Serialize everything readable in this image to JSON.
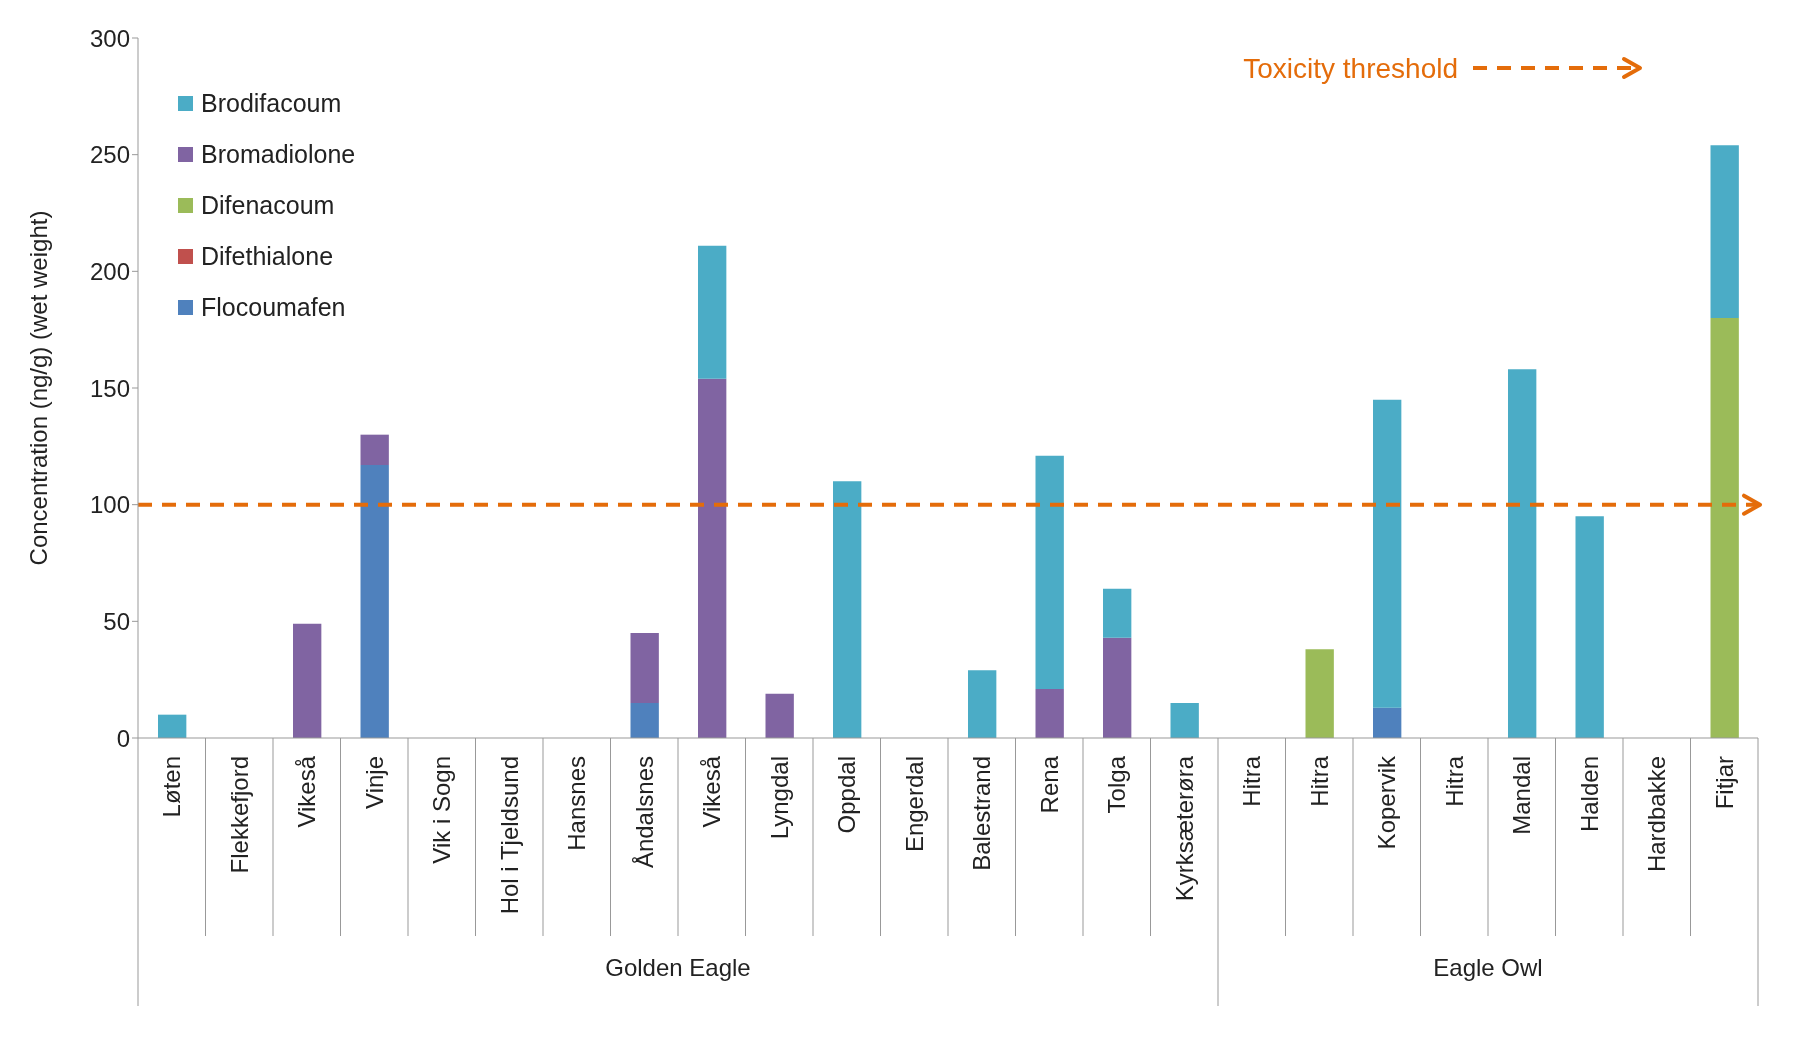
{
  "chart_data": {
    "type": "bar",
    "stacked": true,
    "ylabel": "Concentration (ng/g) (wet weight)",
    "categories": [
      "Løten",
      "Flekkefjord",
      "Vikeså",
      "Vinje",
      "Vik i Sogn",
      "Hol i Tjeldsund",
      "Hansnes",
      "Åndalsnes",
      "Vikeså",
      "Lyngdal",
      "Oppdal",
      "Engerdal",
      "Balestrand",
      "Rena",
      "Tolga",
      "Kyrksæterøra",
      "Hitra",
      "Hitra",
      "Kopervik",
      "Hitra",
      "Mandal",
      "Halden",
      "Hardbakke",
      "Fitjar"
    ],
    "series": [
      {
        "name": "Flocoumafen",
        "color": "#4f81bd",
        "values": [
          null,
          null,
          null,
          117,
          null,
          null,
          null,
          15,
          null,
          null,
          null,
          null,
          null,
          null,
          null,
          null,
          null,
          null,
          13,
          null,
          null,
          null,
          null,
          null
        ]
      },
      {
        "name": "Difethialone",
        "color": "#c0504d",
        "values": [
          null,
          null,
          null,
          null,
          null,
          null,
          null,
          null,
          null,
          null,
          null,
          null,
          null,
          null,
          null,
          null,
          null,
          null,
          null,
          null,
          null,
          null,
          null,
          null
        ]
      },
      {
        "name": "Difenacoum",
        "color": "#9bbb59",
        "values": [
          null,
          null,
          null,
          null,
          null,
          null,
          null,
          null,
          null,
          null,
          null,
          null,
          null,
          null,
          null,
          null,
          null,
          38,
          null,
          null,
          null,
          null,
          null,
          180
        ]
      },
      {
        "name": "Bromadiolone",
        "color": "#8064a2",
        "values": [
          null,
          null,
          49,
          13,
          null,
          null,
          null,
          30,
          154,
          19,
          null,
          null,
          null,
          21,
          43,
          null,
          null,
          null,
          null,
          null,
          null,
          null,
          null,
          null
        ]
      },
      {
        "name": "Brodifacoum",
        "color": "#4bacc6",
        "values": [
          10,
          null,
          null,
          null,
          null,
          null,
          null,
          null,
          57,
          null,
          110,
          null,
          29,
          100,
          21,
          15,
          null,
          null,
          132,
          null,
          158,
          95,
          null,
          74
        ]
      }
    ],
    "ylim": [
      0,
      300
    ],
    "yticks": [
      0,
      50,
      100,
      150,
      200,
      250,
      300
    ],
    "legend": "top left",
    "ref_lines": [
      {
        "axis": "y",
        "value": 100,
        "label": "Toxicity threshold",
        "color": "#e46c0a",
        "line_style": "dashed"
      }
    ],
    "annotations": [
      "Golden Eagle",
      "Eagle Owl"
    ]
  }
}
